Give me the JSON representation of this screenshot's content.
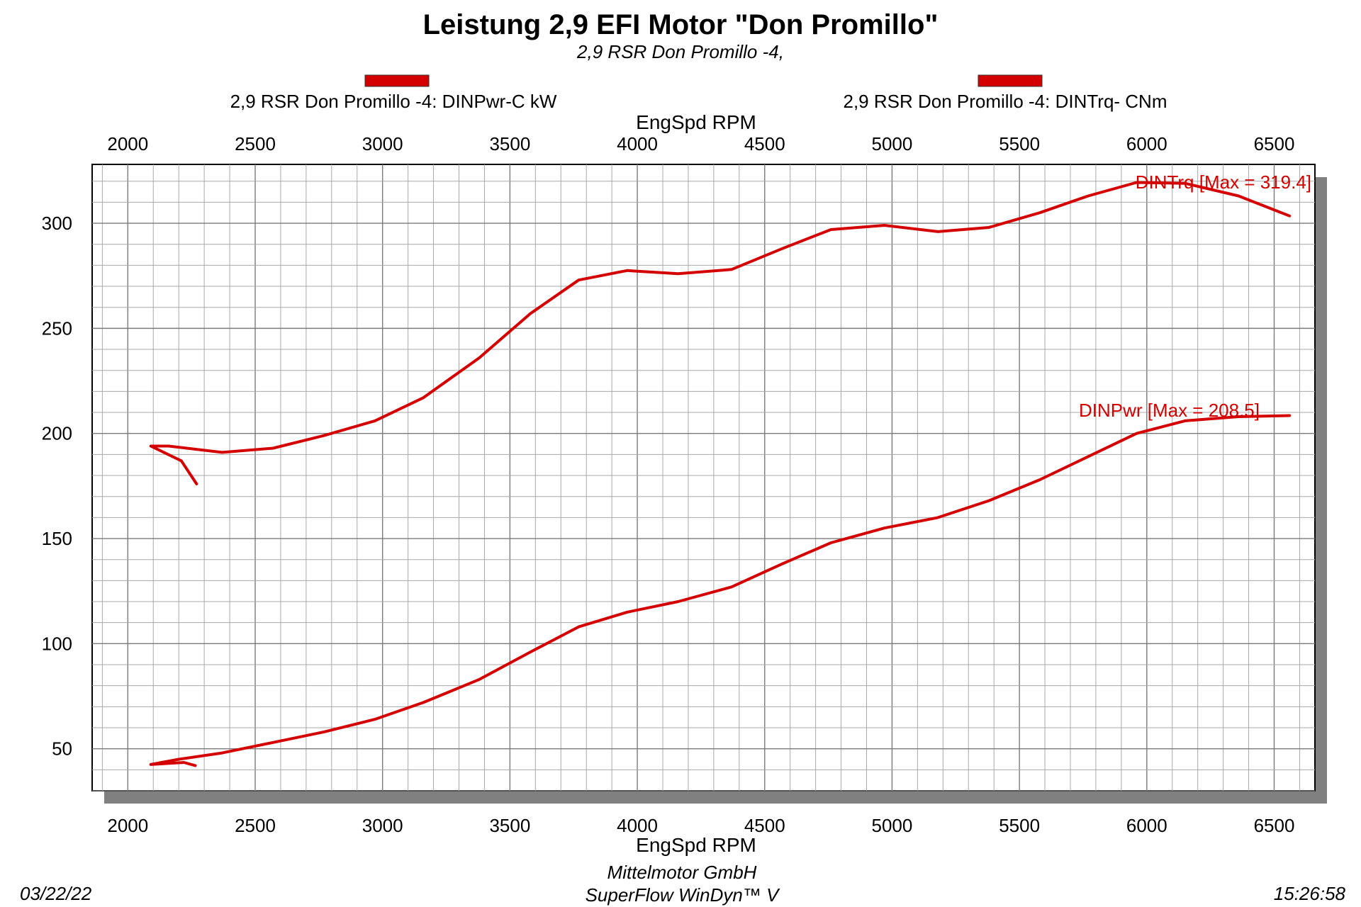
{
  "chart_data": {
    "type": "line",
    "title": "Leistung 2,9 EFI Motor \"Don Promillo\"",
    "subtitle": "2,9 RSR Don Promillo -4,",
    "xlabel": "EngSpd  RPM",
    "xlim": [
      1860,
      6660
    ],
    "ylim": [
      30,
      328
    ],
    "x_ticks": [
      2000,
      2500,
      3000,
      3500,
      4000,
      4500,
      5000,
      5500,
      6000,
      6500
    ],
    "y_ticks": [
      50,
      100,
      150,
      200,
      250,
      300
    ],
    "grid": true,
    "legend_position": "top",
    "series": [
      {
        "name": "2,9 RSR Don Promillo -4: DINPwr-C kW",
        "color": "#d40000",
        "max_label": "DINPwr [Max = 208.5]",
        "points": [
          [
            2265,
            42
          ],
          [
            2220,
            43.5
          ],
          [
            2090,
            42.5
          ],
          [
            2200,
            45
          ],
          [
            2370,
            48
          ],
          [
            2570,
            53
          ],
          [
            2770,
            58
          ],
          [
            2970,
            64
          ],
          [
            3160,
            72
          ],
          [
            3380,
            83
          ],
          [
            3580,
            96
          ],
          [
            3770,
            108
          ],
          [
            3960,
            115
          ],
          [
            4160,
            120
          ],
          [
            4370,
            127
          ],
          [
            4570,
            138
          ],
          [
            4760,
            148
          ],
          [
            4970,
            155
          ],
          [
            5180,
            160
          ],
          [
            5380,
            168
          ],
          [
            5580,
            178
          ],
          [
            5770,
            189
          ],
          [
            5960,
            200
          ],
          [
            6150,
            206
          ],
          [
            6360,
            208
          ],
          [
            6560,
            208.5
          ]
        ]
      },
      {
        "name": "2,9 RSR Don Promillo -4: DINTrq- CNm",
        "color": "#d40000",
        "max_label": "DINTrq [Max = 319.4]",
        "points": [
          [
            2270,
            176
          ],
          [
            2210,
            187
          ],
          [
            2090,
            194
          ],
          [
            2160,
            194
          ],
          [
            2370,
            191
          ],
          [
            2570,
            193
          ],
          [
            2770,
            199
          ],
          [
            2970,
            206
          ],
          [
            3160,
            217
          ],
          [
            3380,
            236
          ],
          [
            3580,
            257
          ],
          [
            3770,
            273
          ],
          [
            3960,
            277.5
          ],
          [
            4160,
            276
          ],
          [
            4370,
            278
          ],
          [
            4570,
            288
          ],
          [
            4760,
            297
          ],
          [
            4970,
            299
          ],
          [
            5180,
            296
          ],
          [
            5380,
            298
          ],
          [
            5580,
            305
          ],
          [
            5770,
            313
          ],
          [
            5960,
            319.4
          ],
          [
            6150,
            319
          ],
          [
            6360,
            313
          ],
          [
            6560,
            303.5
          ]
        ]
      }
    ]
  },
  "footer": {
    "date": "03/22/22",
    "company": "Mittelmotor GmbH",
    "software": "SuperFlow WinDyn™ V",
    "time": "15:26:58"
  }
}
